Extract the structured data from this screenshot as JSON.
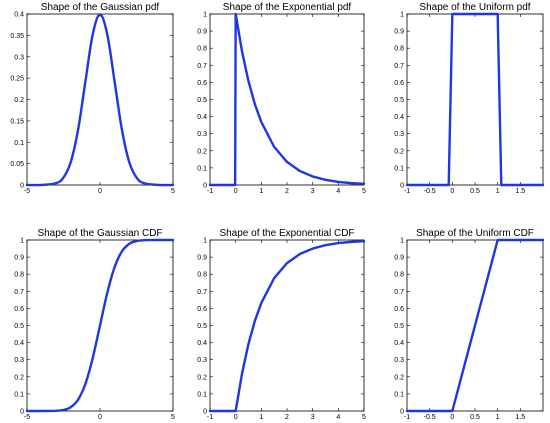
{
  "chart_data": [
    {
      "type": "line",
      "title": "Shape of the Gaussian pdf",
      "xlim": [
        -5,
        5
      ],
      "ylim": [
        0,
        0.4
      ],
      "xticks": [
        "-5",
        "0",
        "5"
      ],
      "xtick_values": [
        -5,
        0,
        5
      ],
      "yticks": [
        "0",
        "0.05",
        "0.1",
        "0.15",
        "0.2",
        "0.25",
        "0.3",
        "0.35",
        "0.4"
      ],
      "ytick_values": [
        0,
        0.05,
        0.1,
        0.15,
        0.2,
        0.25,
        0.3,
        0.35,
        0.4
      ],
      "grid": false,
      "color": "#1f36e0",
      "x": [
        -5,
        -4,
        -3,
        -2.5,
        -2,
        -1.5,
        -1,
        -0.5,
        0,
        0.5,
        1,
        1.5,
        2,
        2.5,
        3,
        4,
        5
      ],
      "y": [
        0,
        0.0001,
        0.0044,
        0.0175,
        0.054,
        0.1295,
        0.242,
        0.352,
        0.399,
        0.352,
        0.242,
        0.1295,
        0.054,
        0.0175,
        0.0044,
        0.0001,
        0
      ]
    },
    {
      "type": "line",
      "title": "Shape of the Exponential pdf",
      "xlim": [
        -1,
        5
      ],
      "ylim": [
        0,
        1
      ],
      "xticks": [
        "-1",
        "0",
        "1",
        "2",
        "3",
        "4",
        "5"
      ],
      "xtick_values": [
        -1,
        0,
        1,
        2,
        3,
        4,
        5
      ],
      "yticks": [
        "0",
        "0.1",
        "0.2",
        "0.3",
        "0.4",
        "0.5",
        "0.6",
        "0.7",
        "0.8",
        "0.9",
        "1"
      ],
      "ytick_values": [
        0,
        0.1,
        0.2,
        0.3,
        0.4,
        0.5,
        0.6,
        0.7,
        0.8,
        0.9,
        1
      ],
      "grid": false,
      "color": "#1f36e0",
      "x": [
        -1,
        -0.02,
        0,
        0.25,
        0.5,
        0.75,
        1,
        1.5,
        2,
        2.5,
        3,
        3.5,
        4,
        4.5,
        5
      ],
      "y": [
        0,
        0,
        1,
        0.779,
        0.607,
        0.472,
        0.368,
        0.223,
        0.135,
        0.082,
        0.05,
        0.03,
        0.018,
        0.011,
        0.007
      ]
    },
    {
      "type": "line",
      "title": "Shape of the Uniform pdf",
      "xlim": [
        -1,
        2
      ],
      "ylim": [
        0,
        1
      ],
      "xticks": [
        "-1",
        "-0.5",
        "0",
        "0.5",
        "1",
        "1.5"
      ],
      "xtick_values": [
        -1,
        -0.5,
        0,
        0.5,
        1,
        1.5
      ],
      "yticks": [
        "0",
        "0.1",
        "0.2",
        "0.3",
        "0.4",
        "0.5",
        "0.6",
        "0.7",
        "0.8",
        "0.9",
        "1"
      ],
      "ytick_values": [
        0,
        0.1,
        0.2,
        0.3,
        0.4,
        0.5,
        0.6,
        0.7,
        0.8,
        0.9,
        1
      ],
      "grid": false,
      "color": "#1f36e0",
      "x": [
        -1,
        -0.08,
        0,
        1,
        1.08,
        2
      ],
      "y": [
        0,
        0,
        1,
        1,
        0,
        0
      ]
    },
    {
      "type": "line",
      "title": "Shape of the Gaussian CDF",
      "xlim": [
        -5,
        5
      ],
      "ylim": [
        0,
        1
      ],
      "xticks": [
        "-5",
        "0",
        "5"
      ],
      "xtick_values": [
        -5,
        0,
        5
      ],
      "yticks": [
        "0",
        "0.1",
        "0.2",
        "0.3",
        "0.4",
        "0.5",
        "0.6",
        "0.7",
        "0.8",
        "0.9",
        "1"
      ],
      "ytick_values": [
        0,
        0.1,
        0.2,
        0.3,
        0.4,
        0.5,
        0.6,
        0.7,
        0.8,
        0.9,
        1
      ],
      "grid": false,
      "color": "#1f36e0",
      "x": [
        -5,
        -3.5,
        -3,
        -2.5,
        -2,
        -1.5,
        -1,
        -0.5,
        0,
        0.5,
        1,
        1.5,
        2,
        2.5,
        3,
        3.5,
        5
      ],
      "y": [
        0,
        0.0002,
        0.0013,
        0.0062,
        0.0228,
        0.0668,
        0.1587,
        0.3085,
        0.5,
        0.6915,
        0.8413,
        0.9332,
        0.9772,
        0.9938,
        0.9987,
        0.9998,
        1
      ]
    },
    {
      "type": "line",
      "title": "Shape of the Exponential CDF",
      "xlim": [
        -1,
        5
      ],
      "ylim": [
        0,
        1
      ],
      "xticks": [
        "-1",
        "0",
        "1",
        "2",
        "3",
        "4",
        "5"
      ],
      "xtick_values": [
        -1,
        0,
        1,
        2,
        3,
        4,
        5
      ],
      "yticks": [
        "0",
        "0.1",
        "0.2",
        "0.3",
        "0.4",
        "0.5",
        "0.6",
        "0.7",
        "0.8",
        "0.9",
        "1"
      ],
      "ytick_values": [
        0,
        0.1,
        0.2,
        0.3,
        0.4,
        0.5,
        0.6,
        0.7,
        0.8,
        0.9,
        1
      ],
      "grid": false,
      "color": "#1f36e0",
      "x": [
        -1,
        0,
        0.25,
        0.5,
        0.75,
        1,
        1.5,
        2,
        2.5,
        3,
        3.5,
        4,
        4.5,
        5
      ],
      "y": [
        0,
        0,
        0.221,
        0.393,
        0.528,
        0.632,
        0.777,
        0.865,
        0.918,
        0.95,
        0.97,
        0.982,
        0.989,
        0.993
      ]
    },
    {
      "type": "line",
      "title": "Shape of the Uniform CDF",
      "xlim": [
        -1,
        2
      ],
      "ylim": [
        0,
        1
      ],
      "xticks": [
        "-1",
        "-0.5",
        "0",
        "0.5",
        "1",
        "1.5"
      ],
      "xtick_values": [
        -1,
        -0.5,
        0,
        0.5,
        1,
        1.5
      ],
      "yticks": [
        "0",
        "0.1",
        "0.2",
        "0.3",
        "0.4",
        "0.5",
        "0.6",
        "0.7",
        "0.8",
        "0.9",
        "1"
      ],
      "ytick_values": [
        0,
        0.1,
        0.2,
        0.3,
        0.4,
        0.5,
        0.6,
        0.7,
        0.8,
        0.9,
        1
      ],
      "grid": false,
      "color": "#1f36e0",
      "x": [
        -1,
        0,
        1,
        2
      ],
      "y": [
        0,
        0,
        1,
        1
      ]
    }
  ]
}
